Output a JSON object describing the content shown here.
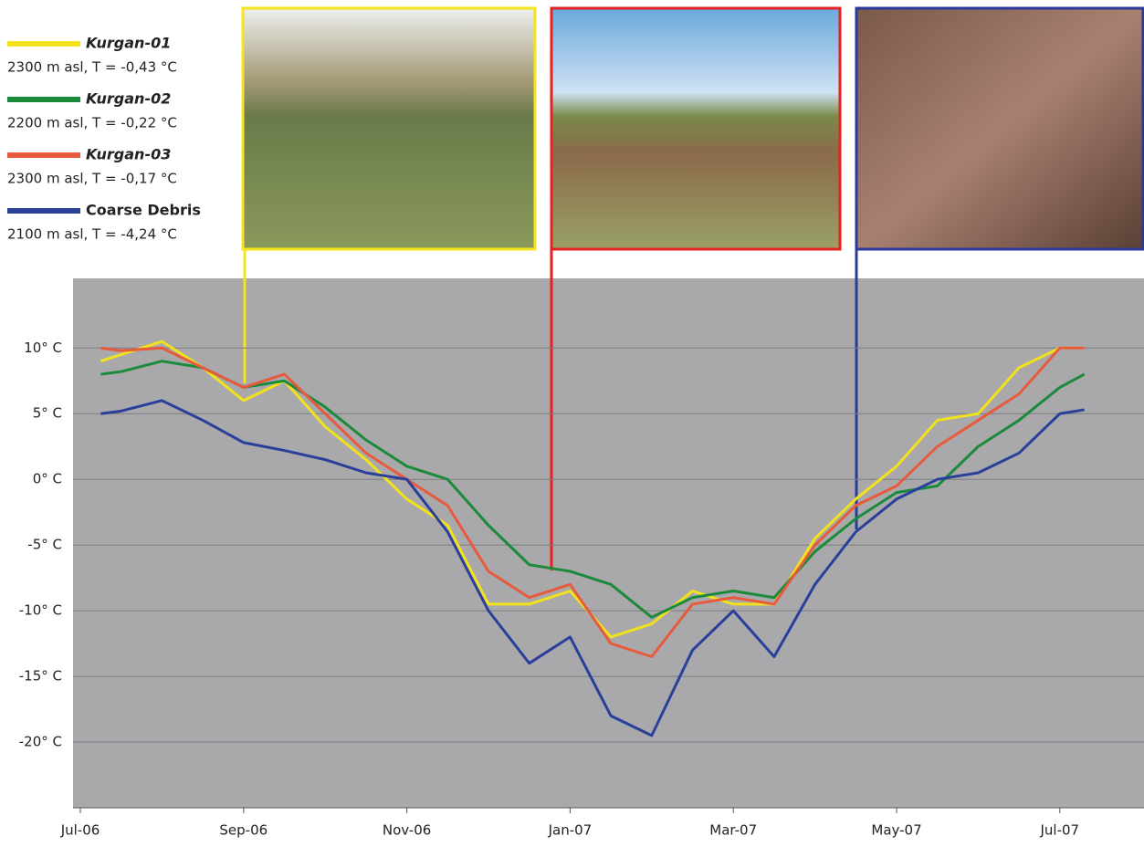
{
  "chart_data": {
    "type": "line",
    "x": [
      0.25,
      0.5,
      1,
      1.5,
      2,
      2.5,
      3,
      3.5,
      4,
      4.5,
      5,
      5.5,
      6,
      6.5,
      7,
      7.5,
      8,
      8.5,
      9,
      9.5,
      10,
      10.5,
      11,
      11.5,
      12,
      12.3
    ],
    "xlim": [
      0,
      13
    ],
    "xticks": [
      {
        "value": 0,
        "label": "Jul-06"
      },
      {
        "value": 2,
        "label": "Sep-06"
      },
      {
        "value": 4,
        "label": "Nov-06"
      },
      {
        "value": 6,
        "label": "Jan-07"
      },
      {
        "value": 8,
        "label": "Mar-07"
      },
      {
        "value": 10,
        "label": "May-07"
      },
      {
        "value": 12,
        "label": "Jul-07"
      }
    ],
    "ylim": [
      -25,
      15.3
    ],
    "yticks": [
      {
        "value": -20,
        "label": "-20° C"
      },
      {
        "value": -15,
        "label": "-15° C"
      },
      {
        "value": -10,
        "label": "-10° C"
      },
      {
        "value": -5,
        "label": "-5° C"
      },
      {
        "value": 0,
        "label": "0° C"
      },
      {
        "value": 5,
        "label": "5° C"
      },
      {
        "value": 10,
        "label": "10° C"
      }
    ],
    "grid": true,
    "series": [
      {
        "name": "Kurgan-01",
        "note": "2300 m asl, T = -0,43 °C",
        "color": "#f2e21c",
        "values": [
          9,
          9.5,
          10.5,
          8.5,
          6,
          7.5,
          4,
          1.5,
          -1.5,
          -3.5,
          -9.5,
          -9.5,
          -8.5,
          -12,
          -11,
          -8.5,
          -9.5,
          -9.5,
          -4.5,
          -1.5,
          1,
          4.5,
          5,
          8.5,
          10,
          10
        ]
      },
      {
        "name": "Kurgan-02",
        "note": "2200 m asl, T = -0,22 °C",
        "color": "#1b8a3a",
        "values": [
          8,
          8.2,
          9,
          8.5,
          7,
          7.5,
          5.5,
          3,
          1,
          0,
          -3.5,
          -6.5,
          -7,
          -8,
          -10.5,
          -9,
          -8.5,
          -9,
          -5.5,
          -3,
          -1,
          -0.5,
          2.5,
          4.5,
          7,
          8
        ]
      },
      {
        "name": "Kurgan-03",
        "note": "2300 m asl, T = -0,17 °C",
        "color": "#e85a3c",
        "values": [
          10,
          9.8,
          10,
          8.5,
          7,
          8,
          5,
          2,
          0,
          -2,
          -7,
          -9,
          -8,
          -12.5,
          -13.5,
          -9.5,
          -9,
          -9.5,
          -5,
          -2,
          -0.5,
          2.5,
          4.5,
          6.5,
          10,
          10
        ]
      },
      {
        "name": "Coarse Debris",
        "note": "2100 m asl, T = -4,24 °C",
        "color": "#2a3f9a",
        "values": [
          5,
          5.2,
          6,
          4.5,
          2.8,
          2.2,
          1.5,
          0.5,
          0,
          -4,
          -10,
          -14,
          -12,
          -18,
          -19.5,
          -13,
          -10,
          -13.5,
          -8,
          -4,
          -1.5,
          0,
          0.5,
          2,
          5,
          5.3
        ]
      }
    ]
  }
}
